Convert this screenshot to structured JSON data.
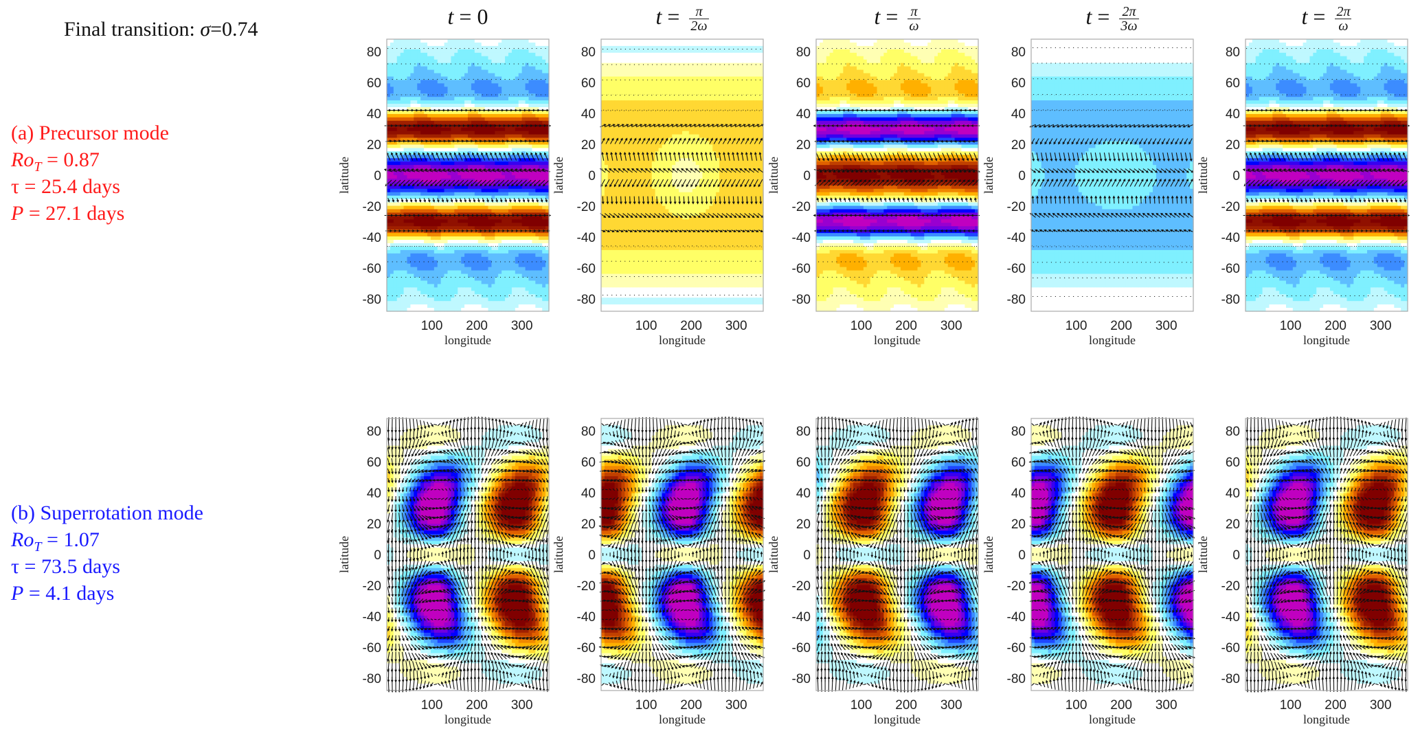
{
  "figure": {
    "title_prefix": "Final transition: ",
    "title_symbol": "σ",
    "title_value": "=0.74"
  },
  "modes": [
    {
      "id": "a",
      "label": "(a) Precursor mode",
      "rot_symbol": "Ro",
      "rot_sub": "T",
      "rot_value": " = 0.87",
      "tau_text": "τ = 25.4 days",
      "p_symbol": "P",
      "p_value": " = 27.1 days",
      "color": "#ff1a1a"
    },
    {
      "id": "b",
      "label": "(b) Superrotation mode",
      "rot_symbol": "Ro",
      "rot_sub": "T",
      "rot_value": " = 1.07",
      "tau_text": "τ = 73.5 days",
      "p_symbol": "P",
      "p_value": " = 4.1 days",
      "color": "#1a1aff"
    }
  ],
  "columns": [
    {
      "t_label": "t",
      "eq": "=",
      "plain": "0",
      "num": "",
      "den": ""
    },
    {
      "t_label": "t",
      "eq": "=",
      "plain": "",
      "num": "π",
      "den": "2ω"
    },
    {
      "t_label": "t",
      "eq": "=",
      "plain": "",
      "num": "π",
      "den": "ω"
    },
    {
      "t_label": "t",
      "eq": "=",
      "plain": "",
      "num": "2π",
      "den": "3ω"
    },
    {
      "t_label": "t",
      "eq": "=",
      "plain": "",
      "num": "2π",
      "den": "ω"
    }
  ],
  "chart_data": {
    "type": "heatmap",
    "description": "Contour maps of perturbation field with wind-vector quivers, latitude vs longitude, 2 modes x 5 phases",
    "xlabel": "longitude",
    "ylabel": "latitude",
    "xlim": [
      0,
      360
    ],
    "ylim": [
      -88,
      88
    ],
    "xticks": [
      100,
      200,
      300
    ],
    "yticks": [
      80,
      60,
      40,
      20,
      0,
      -20,
      -40,
      -60,
      -80
    ],
    "colormap": [
      "#c000c0",
      "#7000e0",
      "#0000ff",
      "#3c8cff",
      "#7ff0ff",
      "#ffffff",
      "#ffff66",
      "#ffb000",
      "#e06000",
      "#a02000",
      "#800000"
    ],
    "rows": [
      {
        "mode": "precursor",
        "structure": "zonally symmetric bands",
        "band_latitudes": {
          "equator": 0,
          "subtropical": [
            30,
            -30
          ],
          "midlatitude": [
            55,
            -55
          ]
        },
        "phase_amplitudes": [
          1.0,
          0.35,
          -1.0,
          -0.35,
          1.0
        ],
        "panel_tints": [
          "equator negative (magenta), ±30 positive (dark red), ±55 weak negative",
          "weak positive (yellow/orange) everywhere",
          "equator positive (dark red), ±30 negative (purple), ±55 weak positive",
          "weak negative (blue) everywhere",
          "same as t=0"
        ]
      },
      {
        "mode": "superrotation",
        "structure": "zonal wavenumber-1 tilted eddies",
        "wavenumber": 1,
        "eddy_latitudes": [
          40,
          20,
          -20,
          -40
        ],
        "negative_center_longitude_by_panel": [
          110,
          190,
          290,
          10,
          110
        ],
        "positive_center_longitude_by_panel": [
          290,
          10,
          110,
          190,
          290
        ]
      }
    ]
  }
}
